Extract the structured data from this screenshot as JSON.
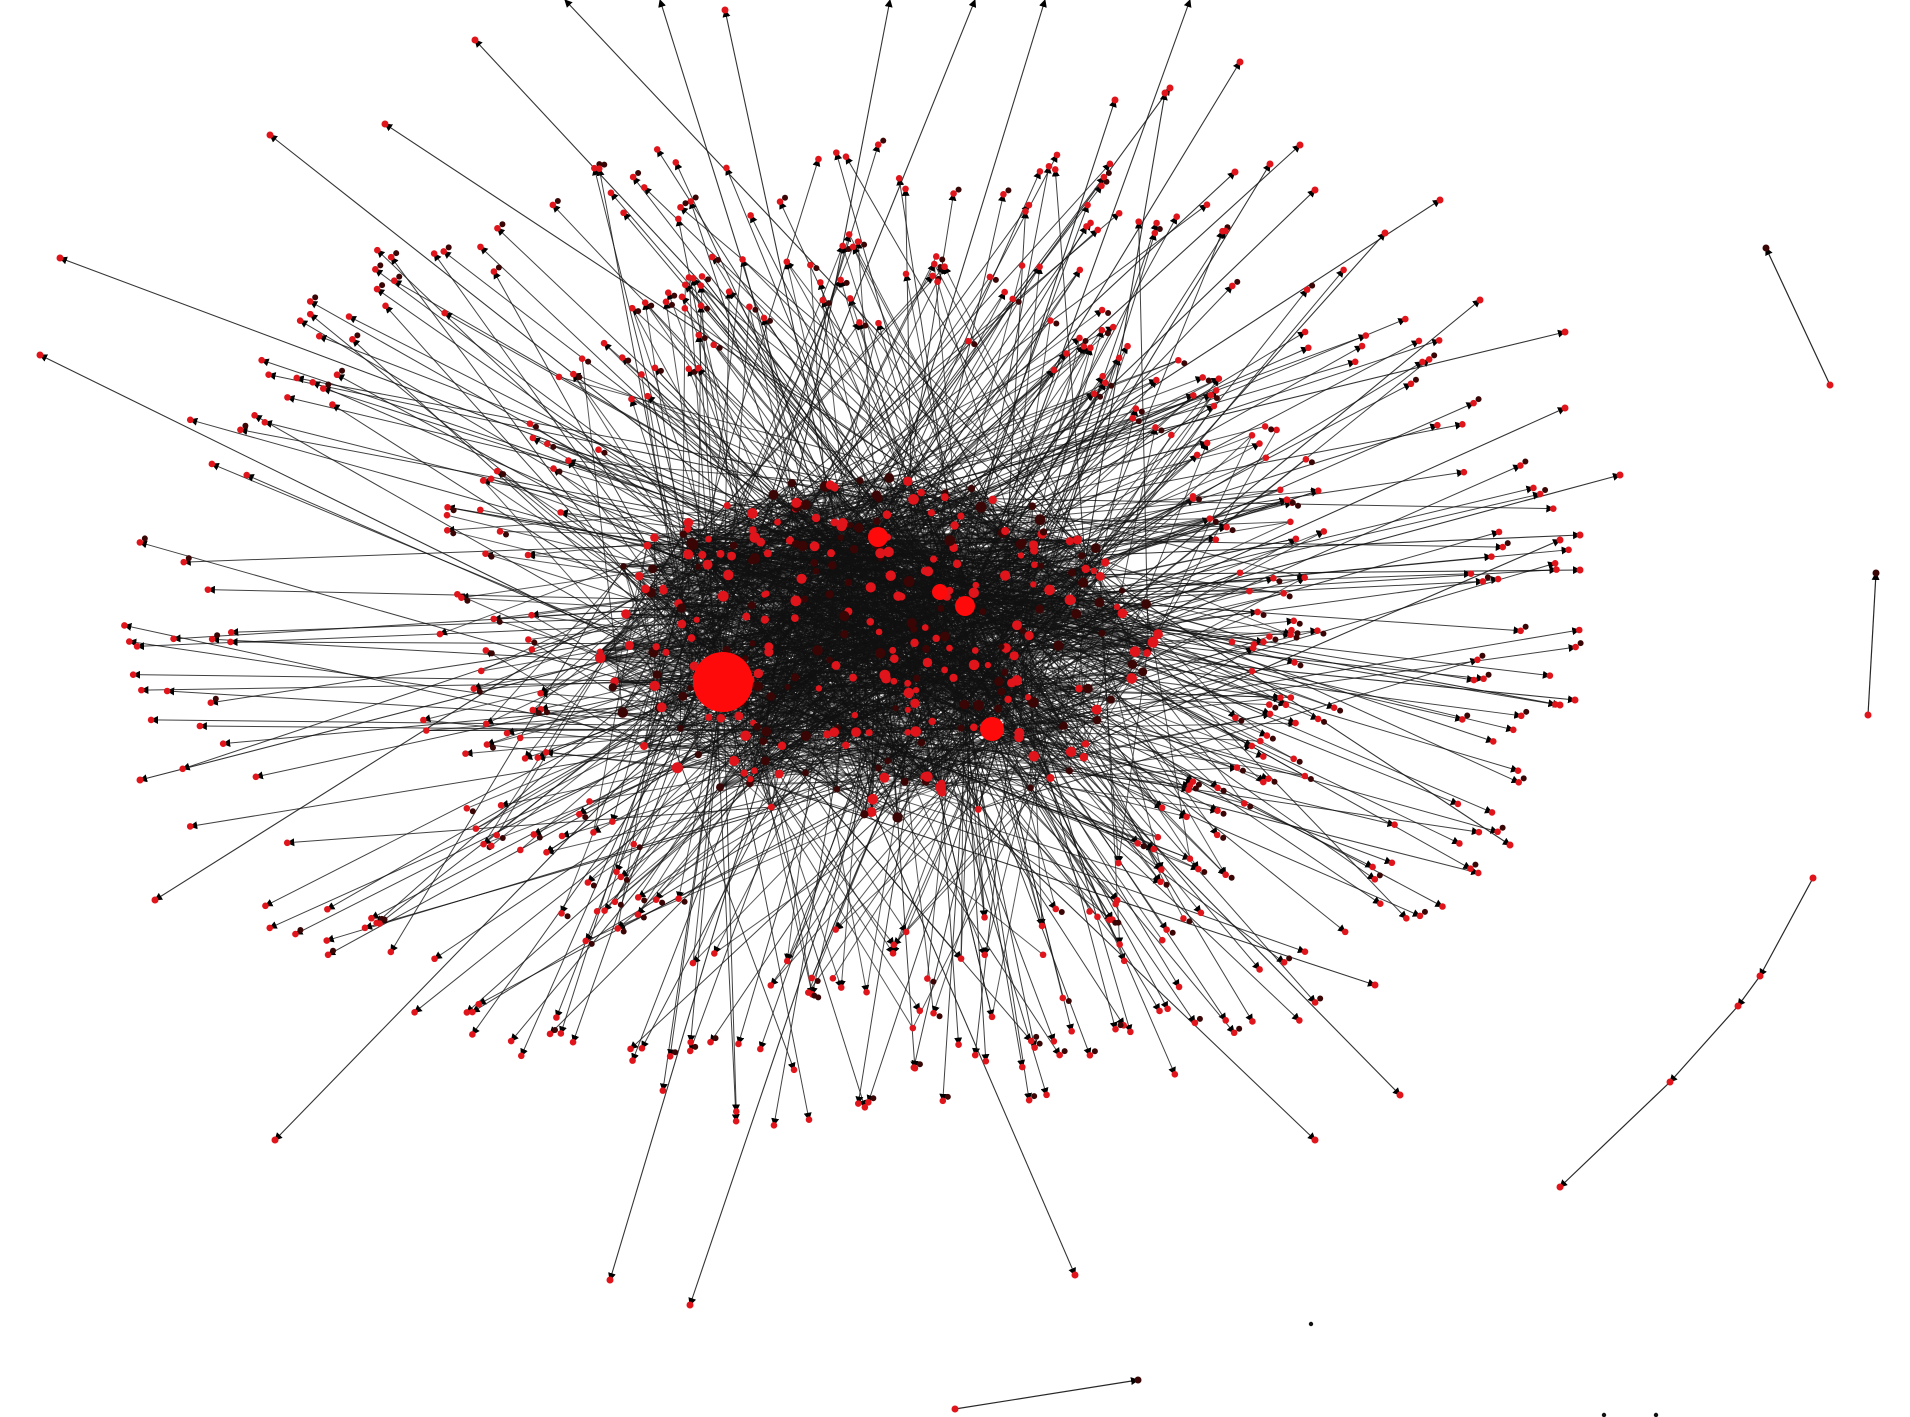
{
  "diagram": {
    "type": "network-graph",
    "directed": true,
    "colors": {
      "background": "#ffffff",
      "node": "#e0141b",
      "node_dark": "#3a0505",
      "hub": "#ff0a0a",
      "edge": "#111111",
      "arrowhead": "#000000"
    },
    "hub_count": 5,
    "components": [
      "main-cluster",
      "isolated-edge",
      "isolated-edge",
      "isolated-chain",
      "isolated-edge",
      "isolated-dots"
    ]
  }
}
